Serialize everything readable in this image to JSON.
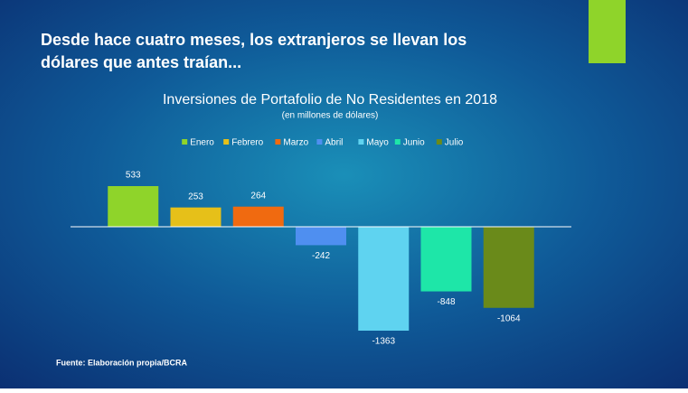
{
  "slide_title": [
    "Desde hace cuatro meses, los extranjeros se llevan los",
    "dólares que antes traían..."
  ],
  "source": "Fuente: Elaboración propia/BCRA",
  "chart_data": {
    "type": "bar",
    "title": "Inversiones de Portafolio de No Residentes en 2018",
    "subtitle": "(en millones de dólares)",
    "categories": [
      "Enero",
      "Febrero",
      "Marzo",
      "Abril",
      "Mayo",
      "Junio",
      "Julio"
    ],
    "values": [
      533,
      253,
      264,
      -242,
      -1363,
      -848,
      -1064
    ],
    "colors": [
      "#8fd42a",
      "#e6c019",
      "#f06a10",
      "#4f8ff0",
      "#5fd3f0",
      "#1ee6a8",
      "#6a8a1a"
    ],
    "legend": "top"
  }
}
